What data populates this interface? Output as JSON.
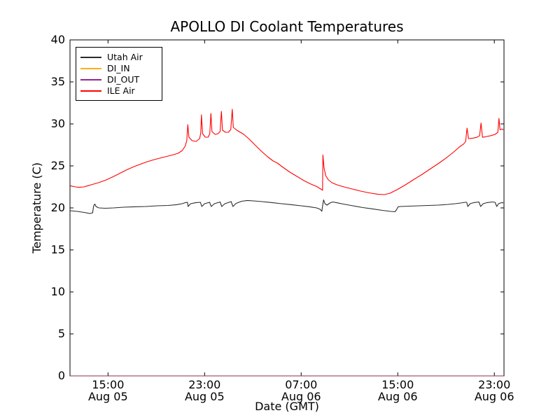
{
  "title": "APOLLO DI Coolant Temperatures",
  "chart_data": {
    "type": "line",
    "title": "APOLLO DI Coolant Temperatures",
    "xlabel": "Date (GMT)",
    "ylabel": "Temperature (C)",
    "x_unit": "hours since Aug 05 00:00 GMT",
    "xlim": [
      11.85,
      47.8
    ],
    "ylim": [
      0,
      40
    ],
    "yticks": [
      0,
      5,
      10,
      15,
      20,
      25,
      30,
      35,
      40
    ],
    "xticks": [
      {
        "value": 15,
        "time": "15:00",
        "date": "Aug 05"
      },
      {
        "value": 23,
        "time": "23:00",
        "date": "Aug 05"
      },
      {
        "value": 31,
        "time": "07:00",
        "date": "Aug 06"
      },
      {
        "value": 39,
        "time": "15:00",
        "date": "Aug 06"
      },
      {
        "value": 47,
        "time": "23:00",
        "date": "Aug 06"
      }
    ],
    "grid": false,
    "legend_position": "upper left",
    "frame_color": "#000000",
    "background": "#ffffff",
    "series": [
      {
        "name": "Utah Air",
        "color": "#2b2b2b",
        "opacity": 1,
        "points": [
          [
            11.87,
            19.67
          ],
          [
            12.45,
            19.58
          ],
          [
            13.03,
            19.46
          ],
          [
            13.49,
            19.33
          ],
          [
            13.72,
            19.42
          ],
          [
            13.81,
            20.25
          ],
          [
            13.9,
            20.46
          ],
          [
            14.01,
            20.15
          ],
          [
            14.25,
            20.0
          ],
          [
            14.77,
            19.96
          ],
          [
            15.46,
            20.0
          ],
          [
            16.28,
            20.08
          ],
          [
            17.2,
            20.13
          ],
          [
            18.13,
            20.17
          ],
          [
            19.06,
            20.25
          ],
          [
            19.99,
            20.29
          ],
          [
            20.68,
            20.38
          ],
          [
            21.14,
            20.5
          ],
          [
            21.43,
            20.63
          ],
          [
            21.58,
            20.67
          ],
          [
            21.64,
            20.17
          ],
          [
            21.84,
            20.5
          ],
          [
            22.3,
            20.63
          ],
          [
            22.65,
            20.67
          ],
          [
            22.77,
            20.17
          ],
          [
            23.0,
            20.5
          ],
          [
            23.41,
            20.67
          ],
          [
            23.55,
            20.17
          ],
          [
            23.81,
            20.5
          ],
          [
            24.28,
            20.71
          ],
          [
            24.42,
            20.17
          ],
          [
            24.68,
            20.5
          ],
          [
            25.2,
            20.75
          ],
          [
            25.35,
            20.17
          ],
          [
            25.61,
            20.54
          ],
          [
            26.07,
            20.79
          ],
          [
            26.54,
            20.88
          ],
          [
            27.06,
            20.83
          ],
          [
            27.75,
            20.75
          ],
          [
            28.57,
            20.63
          ],
          [
            29.38,
            20.5
          ],
          [
            30.19,
            20.38
          ],
          [
            31.0,
            20.25
          ],
          [
            31.7,
            20.13
          ],
          [
            32.28,
            20.0
          ],
          [
            32.57,
            19.83
          ],
          [
            32.71,
            19.6
          ],
          [
            32.8,
            20.5
          ],
          [
            32.86,
            20.96
          ],
          [
            32.97,
            20.5
          ],
          [
            33.14,
            20.33
          ],
          [
            33.38,
            20.58
          ],
          [
            33.61,
            20.71
          ],
          [
            33.9,
            20.63
          ],
          [
            34.48,
            20.46
          ],
          [
            35.29,
            20.25
          ],
          [
            36.1,
            20.04
          ],
          [
            36.91,
            19.88
          ],
          [
            37.72,
            19.71
          ],
          [
            38.42,
            19.58
          ],
          [
            38.77,
            19.54
          ],
          [
            38.88,
            19.75
          ],
          [
            39.03,
            20.13
          ],
          [
            39.23,
            20.17
          ],
          [
            39.93,
            20.21
          ],
          [
            40.74,
            20.25
          ],
          [
            41.55,
            20.29
          ],
          [
            42.36,
            20.33
          ],
          [
            43.17,
            20.42
          ],
          [
            43.75,
            20.5
          ],
          [
            44.22,
            20.58
          ],
          [
            44.57,
            20.67
          ],
          [
            44.71,
            20.67
          ],
          [
            44.8,
            20.17
          ],
          [
            45.0,
            20.5
          ],
          [
            45.32,
            20.63
          ],
          [
            45.72,
            20.71
          ],
          [
            45.87,
            20.17
          ],
          [
            46.07,
            20.5
          ],
          [
            46.42,
            20.63
          ],
          [
            46.83,
            20.71
          ],
          [
            47.06,
            20.67
          ],
          [
            47.2,
            20.17
          ],
          [
            47.35,
            20.5
          ],
          [
            47.61,
            20.63
          ],
          [
            47.75,
            20.6
          ]
        ]
      },
      {
        "name": "DI_IN",
        "color": "#ffa500",
        "opacity": 0.65,
        "points": [
          [
            11.85,
            0
          ],
          [
            47.8,
            0
          ]
        ]
      },
      {
        "name": "DI_OUT",
        "color": "#800080",
        "opacity": 0.6,
        "points": [
          [
            11.85,
            0
          ],
          [
            47.8,
            0
          ]
        ]
      },
      {
        "name": "ILE Air",
        "color": "#ff0000",
        "opacity": 1,
        "points": [
          [
            11.87,
            22.63
          ],
          [
            12.3,
            22.5
          ],
          [
            12.6,
            22.45
          ],
          [
            13.0,
            22.5
          ],
          [
            13.6,
            22.75
          ],
          [
            14.2,
            23.0
          ],
          [
            14.8,
            23.3
          ],
          [
            15.35,
            23.67
          ],
          [
            15.93,
            24.08
          ],
          [
            16.5,
            24.5
          ],
          [
            17.1,
            24.88
          ],
          [
            17.67,
            25.2
          ],
          [
            18.25,
            25.5
          ],
          [
            18.83,
            25.75
          ],
          [
            19.5,
            26.0
          ],
          [
            20.2,
            26.25
          ],
          [
            20.8,
            26.5
          ],
          [
            21.15,
            26.83
          ],
          [
            21.38,
            27.33
          ],
          [
            21.52,
            28.0
          ],
          [
            21.61,
            29.92
          ],
          [
            21.7,
            28.42
          ],
          [
            21.96,
            28.0
          ],
          [
            22.3,
            27.92
          ],
          [
            22.59,
            28.25
          ],
          [
            22.68,
            28.92
          ],
          [
            22.74,
            31.08
          ],
          [
            22.83,
            28.83
          ],
          [
            23.06,
            28.42
          ],
          [
            23.29,
            28.42
          ],
          [
            23.43,
            28.83
          ],
          [
            23.52,
            31.25
          ],
          [
            23.61,
            29.08
          ],
          [
            23.87,
            28.75
          ],
          [
            24.1,
            28.83
          ],
          [
            24.28,
            29.08
          ],
          [
            24.39,
            31.5
          ],
          [
            24.48,
            29.25
          ],
          [
            24.74,
            29.0
          ],
          [
            24.97,
            29.0
          ],
          [
            25.17,
            29.33
          ],
          [
            25.29,
            31.75
          ],
          [
            25.38,
            29.58
          ],
          [
            25.67,
            29.25
          ],
          [
            25.96,
            29.0
          ],
          [
            26.25,
            28.75
          ],
          [
            26.71,
            28.17
          ],
          [
            27.17,
            27.5
          ],
          [
            27.7,
            26.75
          ],
          [
            28.22,
            26.08
          ],
          [
            28.68,
            25.58
          ],
          [
            29.03,
            25.33
          ],
          [
            29.49,
            24.83
          ],
          [
            30.07,
            24.25
          ],
          [
            30.65,
            23.75
          ],
          [
            31.23,
            23.25
          ],
          [
            31.81,
            22.83
          ],
          [
            32.28,
            22.55
          ],
          [
            32.62,
            22.25
          ],
          [
            32.77,
            22.1
          ],
          [
            32.8,
            26.3
          ],
          [
            32.9,
            24.75
          ],
          [
            33.03,
            23.83
          ],
          [
            33.26,
            23.33
          ],
          [
            33.55,
            23.0
          ],
          [
            33.96,
            22.75
          ],
          [
            34.54,
            22.5
          ],
          [
            35.23,
            22.25
          ],
          [
            35.93,
            22.0
          ],
          [
            36.62,
            21.79
          ],
          [
            37.32,
            21.63
          ],
          [
            37.9,
            21.58
          ],
          [
            38.36,
            21.75
          ],
          [
            38.94,
            22.17
          ],
          [
            39.64,
            22.75
          ],
          [
            40.33,
            23.38
          ],
          [
            41.03,
            24.0
          ],
          [
            41.72,
            24.67
          ],
          [
            42.42,
            25.33
          ],
          [
            43.06,
            26.0
          ],
          [
            43.64,
            26.67
          ],
          [
            44.1,
            27.25
          ],
          [
            44.45,
            27.6
          ],
          [
            44.62,
            27.9
          ],
          [
            44.74,
            29.5
          ],
          [
            44.86,
            28.25
          ],
          [
            45.2,
            28.3
          ],
          [
            45.55,
            28.4
          ],
          [
            45.78,
            28.6
          ],
          [
            45.9,
            30.1
          ],
          [
            46.02,
            28.4
          ],
          [
            46.36,
            28.5
          ],
          [
            46.71,
            28.6
          ],
          [
            47.06,
            28.75
          ],
          [
            47.29,
            29.0
          ],
          [
            47.38,
            30.67
          ],
          [
            47.47,
            29.3
          ],
          [
            47.64,
            29.4
          ],
          [
            47.75,
            29.3
          ]
        ]
      }
    ]
  }
}
